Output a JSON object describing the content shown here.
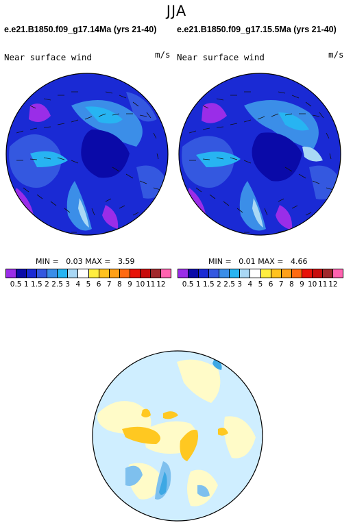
{
  "season": "JJA",
  "panels": [
    {
      "case_title": "e.e21.B1850.f09_g17.14Ma (yrs 21-40)",
      "variable": "Near surface wind",
      "units": "m/s",
      "min_label": "MIN =",
      "min_value": "0.03",
      "max_label": "MAX =",
      "max_value": "3.59"
    },
    {
      "case_title": "e.e21.B1850.f09_g17.15.5Ma (yrs 21-40)",
      "variable": "Near surface wind",
      "units": "m/s",
      "min_label": "MIN =",
      "min_value": "0.01",
      "max_label": "MAX =",
      "max_value": "4.66"
    }
  ],
  "colorbar": {
    "colors": [
      "#9a2de8",
      "#0a0aa8",
      "#1a2ad4",
      "#3458e0",
      "#3b8ee8",
      "#27b4f2",
      "#a9d8f5",
      "#ffffff",
      "#ffee40",
      "#ffc21e",
      "#ffa018",
      "#ff6a10",
      "#e81208",
      "#c80c0c",
      "#a0282c",
      "#ff63b0"
    ],
    "tick_labels": [
      "0.5",
      "1",
      "1.5",
      "2",
      "2.5",
      "3",
      "4",
      "5",
      "6",
      "7",
      "8",
      "9",
      "10",
      "11",
      "12"
    ]
  },
  "difference_colors": {
    "background": "#cfeeff",
    "pale_yellow": "#fffbc8",
    "orange": "#ffc821",
    "blue": "#7ec0ee",
    "dark_blue": "#3da8e4"
  }
}
